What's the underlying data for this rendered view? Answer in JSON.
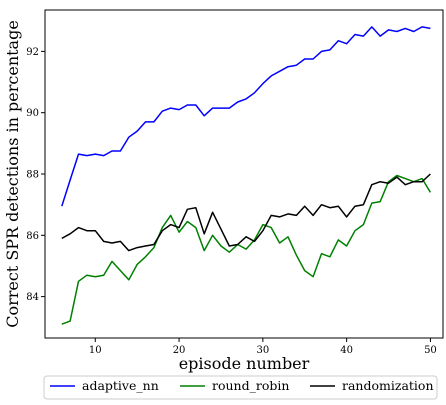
{
  "chart_data": {
    "type": "line",
    "title": "",
    "xlabel": "episode number",
    "ylabel": "Correct SPR detections in percentage",
    "xlim": [
      4,
      51.5
    ],
    "ylim": [
      82.65,
      93.35
    ],
    "xticks": [
      10,
      20,
      30,
      40,
      50
    ],
    "yticks": [
      84,
      86,
      88,
      90,
      92
    ],
    "grid": false,
    "legend_position": "bottom-center, outside plot, single row",
    "x": [
      6,
      7,
      8,
      9,
      10,
      11,
      12,
      13,
      14,
      15,
      16,
      17,
      18,
      19,
      20,
      21,
      22,
      23,
      24,
      25,
      26,
      27,
      28,
      29,
      30,
      31,
      32,
      33,
      34,
      35,
      36,
      37,
      38,
      39,
      40,
      41,
      42,
      43,
      44,
      45,
      46,
      47,
      48,
      49,
      50
    ],
    "series": [
      {
        "name": "adaptive_nn",
        "color": "#0000ff",
        "values": [
          86.95,
          87.8,
          88.65,
          88.6,
          88.65,
          88.6,
          88.75,
          88.75,
          89.2,
          89.4,
          89.7,
          89.7,
          90.05,
          90.15,
          90.1,
          90.25,
          90.25,
          89.9,
          90.15,
          90.15,
          90.15,
          90.35,
          90.45,
          90.65,
          90.95,
          91.2,
          91.35,
          91.5,
          91.55,
          91.75,
          91.75,
          92.0,
          92.05,
          92.35,
          92.25,
          92.55,
          92.5,
          92.8,
          92.5,
          92.7,
          92.65,
          92.75,
          92.65,
          92.8,
          92.75
        ]
      },
      {
        "name": "round_robin",
        "color": "#008000",
        "values": [
          83.1,
          83.2,
          84.5,
          84.7,
          84.65,
          84.7,
          85.15,
          84.85,
          84.55,
          85.05,
          85.3,
          85.6,
          86.25,
          86.65,
          86.1,
          86.45,
          86.25,
          85.5,
          86.0,
          85.65,
          85.45,
          85.7,
          85.55,
          85.85,
          86.35,
          86.25,
          85.75,
          85.95,
          85.35,
          84.85,
          84.65,
          85.4,
          85.3,
          85.85,
          85.65,
          86.15,
          86.35,
          87.05,
          87.1,
          87.75,
          87.95,
          87.85,
          87.75,
          87.85,
          87.4
        ]
      },
      {
        "name": "randomization",
        "color": "#000000",
        "values": [
          85.9,
          86.05,
          86.25,
          86.15,
          86.15,
          85.8,
          85.75,
          85.8,
          85.5,
          85.6,
          85.65,
          85.7,
          86.15,
          86.35,
          86.25,
          86.85,
          86.9,
          86.05,
          86.75,
          86.2,
          85.65,
          85.7,
          85.95,
          85.8,
          86.15,
          86.65,
          86.6,
          86.7,
          86.65,
          86.95,
          86.65,
          87.0,
          86.9,
          86.95,
          86.6,
          86.95,
          87.0,
          87.65,
          87.75,
          87.7,
          87.9,
          87.65,
          87.75,
          87.75,
          88.0
        ]
      }
    ]
  }
}
